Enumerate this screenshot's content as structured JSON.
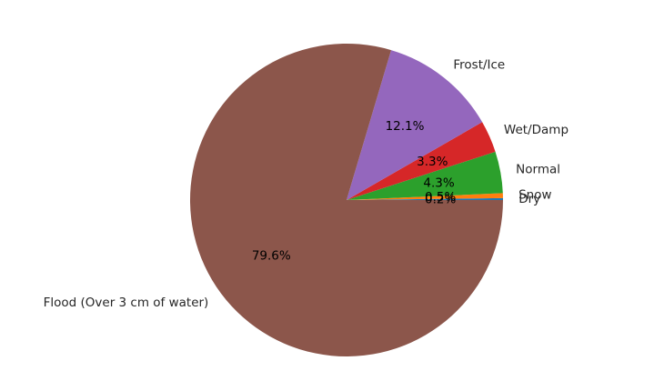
{
  "chart_data": {
    "type": "pie",
    "title": "",
    "start_angle_deg": 0,
    "direction": "counterclockwise",
    "slices": [
      {
        "label": "Dry",
        "pct_text": "0.2%",
        "value": 0.2,
        "color": "#1f77b4"
      },
      {
        "label": "Snow",
        "pct_text": "0.5%",
        "value": 0.5,
        "color": "#ff7f0e"
      },
      {
        "label": "Normal",
        "pct_text": "4.3%",
        "value": 4.3,
        "color": "#2ca02c"
      },
      {
        "label": "Wet/Damp",
        "pct_text": "3.3%",
        "value": 3.3,
        "color": "#d62728"
      },
      {
        "label": "Frost/Ice",
        "pct_text": "12.1%",
        "value": 12.1,
        "color": "#9467bd"
      },
      {
        "label": "Flood (Over 3 cm of water)",
        "pct_text": "79.6%",
        "value": 79.6,
        "color": "#8c564b"
      }
    ]
  }
}
